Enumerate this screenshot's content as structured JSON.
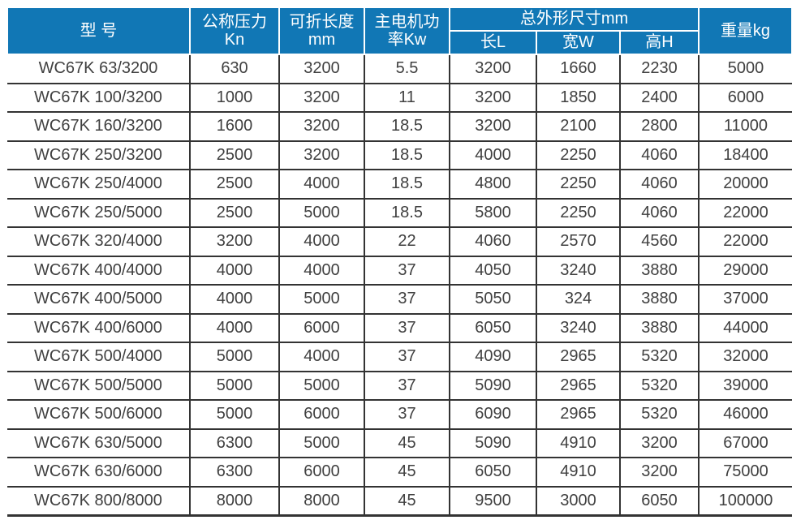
{
  "colors": {
    "header_bg": "#1177b5",
    "header_text": "#ffffff",
    "body_text": "#404040",
    "grid": "#333333"
  },
  "header": {
    "model": "型 号",
    "pressure_l1": "公称压力",
    "pressure_l2": "Kn",
    "fold_l1": "可折长度",
    "fold_l2": "mm",
    "power_l1": "主电机功",
    "power_l2": "率Kw",
    "dims": "总外形尺寸mm",
    "dim_l": "长L",
    "dim_w": "宽W",
    "dim_h": "高H",
    "weight": "重量kg"
  },
  "chart_data": {
    "type": "table",
    "title": "",
    "columns": [
      "型 号",
      "公称压力 Kn",
      "可折长度 mm",
      "主电机功率Kw",
      "总外形尺寸mm 长L",
      "总外形尺寸mm 宽W",
      "总外形尺寸mm 高H",
      "重量kg"
    ],
    "rows": [
      [
        "WC67K 63/3200",
        "630",
        "3200",
        "5.5",
        "3200",
        "1660",
        "2230",
        "5000"
      ],
      [
        "WC67K 100/3200",
        "1000",
        "3200",
        "11",
        "3200",
        "1850",
        "2400",
        "6000"
      ],
      [
        "WC67K 160/3200",
        "1600",
        "3200",
        "18.5",
        "3200",
        "2100",
        "2800",
        "11000"
      ],
      [
        "WC67K 250/3200",
        "2500",
        "3200",
        "18.5",
        "4000",
        "2250",
        "4060",
        "18400"
      ],
      [
        "WC67K 250/4000",
        "2500",
        "4000",
        "18.5",
        "4800",
        "2250",
        "4060",
        "20000"
      ],
      [
        "WC67K 250/5000",
        "2500",
        "5000",
        "18.5",
        "5800",
        "2250",
        "4060",
        "22000"
      ],
      [
        "WC67K 320/4000",
        "3200",
        "4000",
        "22",
        "4060",
        "2570",
        "4560",
        "22000"
      ],
      [
        "WC67K 400/4000",
        "4000",
        "4000",
        "37",
        "4050",
        "3240",
        "3880",
        "29000"
      ],
      [
        "WC67K 400/5000",
        "4000",
        "5000",
        "37",
        "5050",
        "324",
        "3880",
        "37000"
      ],
      [
        "WC67K 400/6000",
        "4000",
        "6000",
        "37",
        "6050",
        "3240",
        "3880",
        "44000"
      ],
      [
        "WC67K 500/4000",
        "5000",
        "4000",
        "37",
        "4090",
        "2965",
        "5320",
        "32000"
      ],
      [
        "WC67K 500/5000",
        "5000",
        "5000",
        "37",
        "5090",
        "2965",
        "5320",
        "39000"
      ],
      [
        "WC67K 500/6000",
        "5000",
        "6000",
        "37",
        "6090",
        "2965",
        "5320",
        "46000"
      ],
      [
        "WC67K 630/5000",
        "6300",
        "5000",
        "45",
        "5090",
        "4910",
        "3200",
        "67000"
      ],
      [
        "WC67K 630/6000",
        "6300",
        "6000",
        "45",
        "6050",
        "4910",
        "3200",
        "75000"
      ],
      [
        "WC67K 800/8000",
        "8000",
        "8000",
        "45",
        "9500",
        "3000",
        "6050",
        "100000"
      ]
    ]
  }
}
